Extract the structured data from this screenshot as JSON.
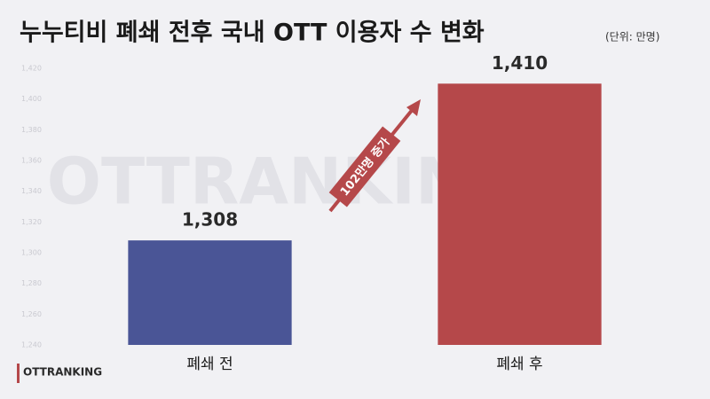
{
  "chart_data": {
    "type": "bar",
    "title": "누누티비 폐쇄 전후 국내 OTT 이용자 수 변화",
    "subtitle": "(단위: 만명)",
    "annotation": "102만명 증가",
    "logo": "OTTRANKING",
    "categories": [
      "폐쇄 전",
      "폐쇄 후"
    ],
    "values": [
      1308,
      1410
    ],
    "value_labels": [
      "1,308",
      "1,410"
    ],
    "colors": [
      "#4a5596",
      "#b5484a"
    ],
    "ylim": [
      1240,
      1420
    ],
    "yticks": [
      {
        "value": 1240,
        "label": "1,240"
      },
      {
        "value": 1260,
        "label": "1,260"
      },
      {
        "value": 1280,
        "label": "1,280"
      },
      {
        "value": 1300,
        "label": "1,300"
      },
      {
        "value": 1320,
        "label": "1,320"
      },
      {
        "value": 1340,
        "label": "1,340"
      },
      {
        "value": 1360,
        "label": "1,360"
      },
      {
        "value": 1380,
        "label": "1,380"
      },
      {
        "value": 1400,
        "label": "1,400"
      },
      {
        "value": 1420,
        "label": "1,420"
      }
    ],
    "grid": false
  }
}
